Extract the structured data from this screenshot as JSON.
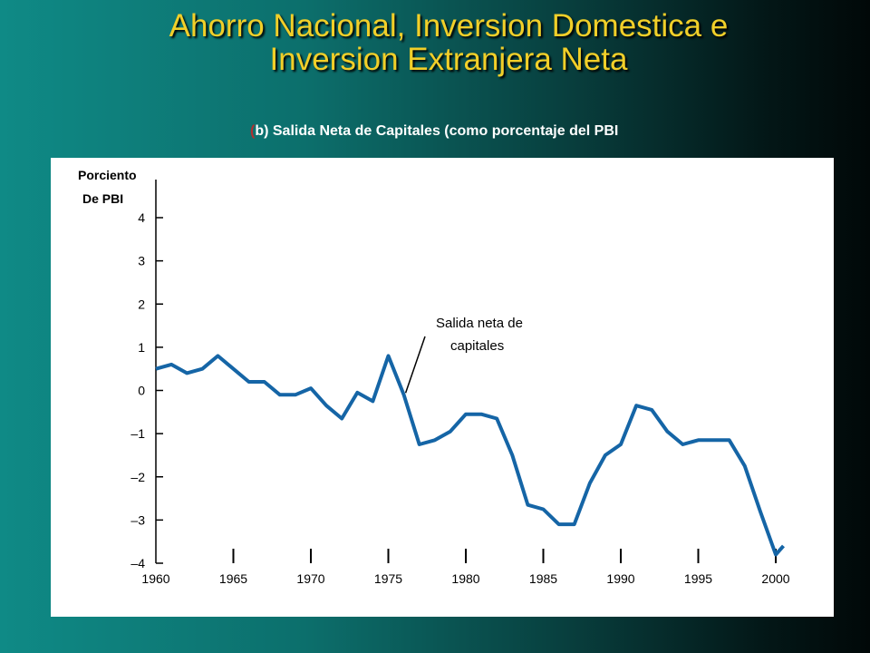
{
  "header": {
    "title_line1": "Ahorro Nacional, Inversion Domestica e",
    "title_line2": "Inversion Extranjera Neta",
    "subtitle_paren": "(",
    "subtitle_text": "b) Salida Neta de Capitales (como porcentaje del PBI"
  },
  "colors": {
    "title": "#f1cf29",
    "line": "#1565a6",
    "panel": "#ffffff"
  },
  "chart_data": {
    "type": "line",
    "title": "(b) Salida Neta de Capitales (como porcentaje del PBI",
    "ylabel_line1": "Porciento",
    "ylabel_line2": "De PBI",
    "xlabel": "",
    "ylim": [
      -4,
      4
    ],
    "xlim": [
      1960,
      2000.5
    ],
    "grid": false,
    "y_ticks": [
      4,
      3,
      2,
      1,
      0,
      -1,
      -2,
      -3,
      -4
    ],
    "y_tick_labels": [
      "4",
      "3",
      "2",
      "1",
      "0",
      "–1",
      "–2",
      "–3",
      "–4"
    ],
    "x_ticks": [
      1960,
      1965,
      1970,
      1975,
      1980,
      1985,
      1990,
      1995,
      2000
    ],
    "x_tick_labels": [
      "1960",
      "1965",
      "1970",
      "1975",
      "1980",
      "1985",
      "1990",
      "1995",
      "2000"
    ],
    "annotation_line1": "Salida neta de",
    "annotation_line2": "capitales",
    "annotation_target": [
      1976,
      -0.1
    ],
    "series": [
      {
        "name": "Salida neta de capitales",
        "x": [
          1960,
          1961,
          1962,
          1963,
          1964,
          1965,
          1966,
          1967,
          1968,
          1969,
          1970,
          1971,
          1972,
          1973,
          1974,
          1975,
          1976,
          1977,
          1978,
          1979,
          1980,
          1981,
          1982,
          1983,
          1984,
          1985,
          1986,
          1987,
          1988,
          1989,
          1990,
          1991,
          1992,
          1993,
          1994,
          1995,
          1996,
          1997,
          1998,
          1999,
          2000
        ],
        "y": [
          0.5,
          0.6,
          0.4,
          0.5,
          0.8,
          0.5,
          0.2,
          0.2,
          -0.1,
          -0.1,
          0.05,
          -0.35,
          -0.65,
          -0.05,
          -0.25,
          0.8,
          -0.1,
          -1.25,
          -1.15,
          -0.95,
          -0.55,
          -0.55,
          -0.65,
          -1.5,
          -2.65,
          -2.75,
          -3.1,
          -3.1,
          -2.15,
          -1.5,
          -1.25,
          -0.35,
          -0.45,
          -0.95,
          -1.25,
          -1.15,
          -1.15,
          -1.15,
          -1.75,
          -2.8,
          -3.8
        ]
      }
    ],
    "series_tail": {
      "x": 2000.5,
      "y": -3.6
    }
  }
}
